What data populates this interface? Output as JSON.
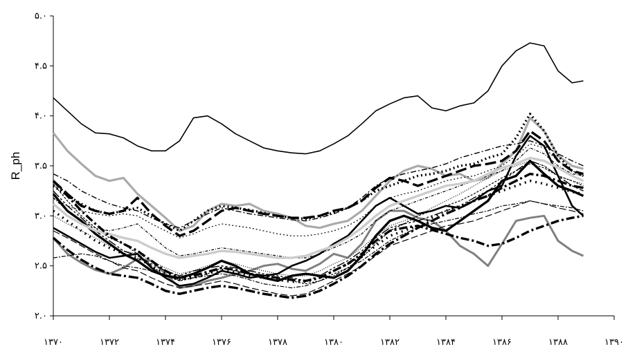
{
  "chart_data": {
    "type": "line",
    "ylabel": "R_ph",
    "xlabel": "",
    "xlim": [
      1370,
      1390
    ],
    "ylim": [
      2.0,
      5.0
    ],
    "x_ticks": [
      1370,
      1372,
      1374,
      1376,
      1378,
      1380,
      1382,
      1384,
      1386,
      1388,
      1390
    ],
    "x_tick_labels": [
      "۱۳۷۰",
      "۱۳۷۲",
      "۱۳۷۴",
      "۱۳۷۶",
      "۱۳۷۸",
      "۱۳۸۰",
      "۱۳۸۲",
      "۱۳۸۴",
      "۱۳۸۶",
      "۱۳۸۸",
      "۱۳۹۰"
    ],
    "y_ticks": [
      2.0,
      2.5,
      3.0,
      3.5,
      4.0,
      4.5,
      5.0
    ],
    "y_tick_labels": [
      "۲.۰",
      "۲.۵",
      "۳.۰",
      "۳.۵",
      "۴.۰",
      "۴.۵",
      "۵.۰"
    ],
    "grid": false,
    "legend": "none",
    "x": [
      1370,
      1370.5,
      1371,
      1371.5,
      1372,
      1372.5,
      1373,
      1373.5,
      1374,
      1374.5,
      1375,
      1375.5,
      1376,
      1376.5,
      1377,
      1377.5,
      1378,
      1378.5,
      1379,
      1379.5,
      1380,
      1380.5,
      1381,
      1381.5,
      1382,
      1382.5,
      1383,
      1383.5,
      1384,
      1384.5,
      1385,
      1385.5,
      1386,
      1386.5,
      1387,
      1387.5,
      1388,
      1388.5,
      1388.9
    ],
    "series": [
      {
        "values": [
          4.18,
          4.05,
          3.92,
          3.83,
          3.82,
          3.78,
          3.7,
          3.65,
          3.65,
          3.75,
          3.98,
          4.0,
          3.92,
          3.82,
          3.75,
          3.68,
          3.65,
          3.63,
          3.62,
          3.65,
          3.72,
          3.8,
          3.92,
          4.05,
          4.12,
          4.18,
          4.2,
          4.08,
          4.05,
          4.1,
          4.13,
          4.25,
          4.5,
          4.65,
          4.73,
          4.7,
          4.45,
          4.33,
          4.35
        ],
        "color": "#000000",
        "width": 1.6,
        "dash": ""
      },
      {
        "values": [
          3.83,
          3.65,
          3.52,
          3.4,
          3.35,
          3.38,
          3.22,
          3.1,
          2.98,
          2.85,
          2.9,
          3.05,
          3.12,
          3.1,
          3.12,
          3.05,
          3.02,
          2.98,
          2.9,
          2.88,
          2.92,
          2.95,
          3.05,
          3.2,
          3.35,
          3.45,
          3.5,
          3.47,
          3.4,
          3.42,
          3.35,
          3.38,
          3.52,
          3.65,
          3.98,
          3.85,
          3.6,
          3.5,
          3.47
        ],
        "color": "#aaaaaa",
        "width": 3.2,
        "dash": ""
      },
      {
        "values": [
          2.78,
          2.62,
          2.53,
          2.46,
          2.42,
          2.48,
          2.57,
          2.55,
          2.42,
          2.28,
          2.3,
          2.35,
          2.38,
          2.42,
          2.45,
          2.5,
          2.52,
          2.47,
          2.45,
          2.52,
          2.62,
          2.58,
          2.72,
          2.95,
          3.05,
          3.05,
          2.98,
          2.95,
          2.85,
          2.7,
          2.62,
          2.5,
          2.72,
          2.95,
          2.98,
          3.0,
          2.75,
          2.65,
          2.6
        ],
        "color": "#808080",
        "width": 3.0,
        "dash": ""
      },
      {
        "values": [
          2.88,
          2.8,
          2.72,
          2.64,
          2.58,
          2.6,
          2.62,
          2.48,
          2.38,
          2.3,
          2.32,
          2.38,
          2.45,
          2.42,
          2.38,
          2.4,
          2.42,
          2.5,
          2.55,
          2.62,
          2.72,
          2.8,
          2.95,
          3.1,
          3.18,
          3.1,
          3.02,
          3.05,
          3.1,
          3.08,
          3.15,
          3.25,
          3.3,
          3.6,
          3.8,
          3.7,
          3.4,
          3.1,
          3.0
        ],
        "color": "#000000",
        "width": 2.6,
        "dash": ""
      },
      {
        "values": [
          3.35,
          3.22,
          3.1,
          3.05,
          3.02,
          3.05,
          3.18,
          3.02,
          2.9,
          2.8,
          2.85,
          2.95,
          3.05,
          3.08,
          3.05,
          3.02,
          3.0,
          2.98,
          2.98,
          3.0,
          3.05,
          3.08,
          3.15,
          3.28,
          3.38,
          3.35,
          3.3,
          3.35,
          3.4,
          3.45,
          3.5,
          3.52,
          3.55,
          3.65,
          3.85,
          3.75,
          3.55,
          3.45,
          3.42
        ],
        "color": "#000000",
        "width": 3.4,
        "dash": "16,6"
      },
      {
        "values": [
          3.18,
          3.1,
          3.05,
          3.02,
          3.0,
          3.02,
          3.0,
          2.92,
          2.85,
          2.78,
          2.82,
          2.88,
          2.92,
          2.9,
          2.88,
          2.85,
          2.82,
          2.8,
          2.8,
          2.82,
          2.85,
          2.9,
          2.98,
          3.1,
          3.18,
          3.22,
          3.25,
          3.3,
          3.35,
          3.38,
          3.4,
          3.45,
          3.5,
          3.6,
          3.72,
          3.68,
          3.55,
          3.45,
          3.4
        ],
        "color": "#000000",
        "width": 1.2,
        "dash": "2,3"
      },
      {
        "values": [
          3.42,
          3.35,
          3.25,
          3.18,
          3.12,
          3.08,
          3.05,
          2.98,
          2.92,
          2.88,
          2.95,
          3.02,
          3.08,
          3.05,
          3.02,
          3.0,
          2.98,
          2.96,
          2.95,
          2.98,
          3.02,
          3.08,
          3.18,
          3.3,
          3.38,
          3.42,
          3.45,
          3.48,
          3.52,
          3.58,
          3.62,
          3.66,
          3.7,
          3.72,
          3.75,
          3.7,
          3.62,
          3.55,
          3.5
        ],
        "color": "#000000",
        "width": 1.4,
        "dash": "8,3,2,3"
      },
      {
        "values": [
          3.3,
          3.2,
          3.12,
          3.05,
          3.02,
          3.05,
          3.08,
          3.0,
          2.92,
          2.85,
          2.95,
          3.05,
          3.1,
          3.08,
          3.06,
          3.03,
          3.0,
          2.98,
          2.97,
          3.0,
          3.03,
          3.08,
          3.15,
          3.25,
          3.3,
          3.35,
          3.4,
          3.42,
          3.45,
          3.5,
          3.52,
          3.58,
          3.62,
          3.78,
          4.02,
          3.85,
          3.6,
          3.45,
          3.4
        ],
        "color": "#000000",
        "width": 3.4,
        "dash": "2,4"
      },
      {
        "values": [
          3.25,
          3.1,
          2.98,
          2.85,
          2.75,
          2.65,
          2.6,
          2.52,
          2.45,
          2.4,
          2.45,
          2.48,
          2.5,
          2.48,
          2.45,
          2.42,
          2.4,
          2.38,
          2.35,
          2.4,
          2.48,
          2.55,
          2.65,
          2.78,
          2.88,
          2.92,
          2.95,
          3.0,
          3.05,
          3.1,
          3.18,
          3.25,
          3.35,
          3.45,
          3.55,
          3.5,
          3.4,
          3.3,
          3.25
        ],
        "color": "#000000",
        "width": 1.4,
        "dash": "12,3,3,3,3,3"
      },
      {
        "values": [
          2.78,
          2.66,
          2.56,
          2.48,
          2.42,
          2.4,
          2.38,
          2.32,
          2.25,
          2.22,
          2.25,
          2.28,
          2.3,
          2.28,
          2.25,
          2.22,
          2.2,
          2.18,
          2.2,
          2.25,
          2.32,
          2.4,
          2.5,
          2.62,
          2.72,
          2.8,
          2.88,
          2.95,
          3.02,
          3.08,
          3.15,
          3.2,
          3.28,
          3.35,
          3.42,
          3.4,
          3.35,
          3.3,
          3.28
        ],
        "color": "#000000",
        "width": 3.4,
        "dash": "14,4,3,4"
      },
      {
        "values": [
          3.0,
          2.92,
          2.85,
          2.78,
          2.7,
          2.65,
          2.62,
          2.55,
          2.48,
          2.42,
          2.45,
          2.5,
          2.55,
          2.52,
          2.48,
          2.45,
          2.42,
          2.4,
          2.4,
          2.45,
          2.52,
          2.58,
          2.68,
          2.8,
          2.9,
          2.95,
          3.0,
          3.08,
          3.15,
          3.22,
          3.3,
          3.38,
          3.45,
          3.5,
          3.55,
          3.5,
          3.4,
          3.35,
          3.32
        ],
        "color": "#000000",
        "width": 1.2,
        "dash": "1,2"
      },
      {
        "values": [
          3.22,
          3.05,
          2.95,
          2.82,
          2.72,
          2.62,
          2.55,
          2.45,
          2.4,
          2.38,
          2.42,
          2.48,
          2.55,
          2.5,
          2.42,
          2.38,
          2.35,
          2.4,
          2.42,
          2.4,
          2.38,
          2.45,
          2.6,
          2.8,
          2.95,
          3.0,
          2.95,
          2.88,
          2.85,
          2.95,
          3.05,
          3.15,
          3.35,
          3.4,
          3.55,
          3.42,
          3.3,
          3.25,
          3.2
        ],
        "color": "#000000",
        "width": 3.4,
        "dash": ""
      },
      {
        "values": [
          3.32,
          3.15,
          3.0,
          2.88,
          2.78,
          2.72,
          2.62,
          2.5,
          2.4,
          2.35,
          2.38,
          2.42,
          2.48,
          2.45,
          2.42,
          2.4,
          2.38,
          2.35,
          2.32,
          2.35,
          2.42,
          2.48,
          2.58,
          2.72,
          2.85,
          2.92,
          3.0,
          3.05,
          3.1,
          3.15,
          3.22,
          3.3,
          3.38,
          3.45,
          3.52,
          3.48,
          3.4,
          3.35,
          3.3
        ],
        "color": "#000000",
        "width": 1.2,
        "dash": "3,2"
      },
      {
        "values": [
          3.18,
          3.05,
          2.95,
          2.88,
          2.85,
          2.88,
          2.92,
          2.8,
          2.68,
          2.6,
          2.62,
          2.65,
          2.68,
          2.66,
          2.64,
          2.62,
          2.6,
          2.58,
          2.58,
          2.62,
          2.68,
          2.74,
          2.82,
          2.95,
          3.05,
          3.1,
          3.15,
          3.2,
          3.25,
          3.3,
          3.35,
          3.4,
          3.45,
          3.55,
          3.68,
          3.62,
          3.5,
          3.42,
          3.4
        ],
        "color": "#000000",
        "width": 1.2,
        "dash": "4,2,1,2"
      },
      {
        "values": [
          3.12,
          3.0,
          2.92,
          2.85,
          2.82,
          2.78,
          2.75,
          2.68,
          2.62,
          2.58,
          2.6,
          2.62,
          2.65,
          2.64,
          2.62,
          2.6,
          2.58,
          2.58,
          2.6,
          2.65,
          2.7,
          2.78,
          2.88,
          3.0,
          3.1,
          3.15,
          3.2,
          3.25,
          3.3,
          3.32,
          3.35,
          3.42,
          3.48,
          3.52,
          3.58,
          3.55,
          3.48,
          3.4,
          3.35
        ],
        "color": "#cccccc",
        "width": 3.4,
        "dash": ""
      },
      {
        "values": [
          3.05,
          2.95,
          2.85,
          2.75,
          2.68,
          2.62,
          2.58,
          2.5,
          2.42,
          2.36,
          2.38,
          2.42,
          2.46,
          2.44,
          2.4,
          2.38,
          2.36,
          2.34,
          2.34,
          2.38,
          2.45,
          2.52,
          2.6,
          2.7,
          2.8,
          2.85,
          2.9,
          2.98,
          3.05,
          3.1,
          3.15,
          3.2,
          3.25,
          3.3,
          3.35,
          3.32,
          3.28,
          3.24,
          3.22
        ],
        "color": "#000000",
        "width": 3.4,
        "dash": "2,6"
      },
      {
        "values": [
          2.85,
          2.78,
          2.7,
          2.62,
          2.55,
          2.48,
          2.45,
          2.38,
          2.32,
          2.28,
          2.3,
          2.32,
          2.35,
          2.32,
          2.28,
          2.25,
          2.22,
          2.2,
          2.22,
          2.28,
          2.35,
          2.42,
          2.5,
          2.6,
          2.7,
          2.75,
          2.8,
          2.85,
          2.9,
          2.92,
          2.95,
          3.0,
          3.05,
          3.1,
          3.15,
          3.12,
          3.08,
          3.05,
          3.02
        ],
        "color": "#000000",
        "width": 1.2,
        "dash": "10,4"
      },
      {
        "values": [
          2.58,
          2.6,
          2.62,
          2.6,
          2.55,
          2.5,
          2.48,
          2.45,
          2.4,
          2.36,
          2.38,
          2.4,
          2.42,
          2.4,
          2.36,
          2.32,
          2.3,
          2.28,
          2.3,
          2.35,
          2.4,
          2.48,
          2.55,
          2.65,
          2.75,
          2.82,
          2.88,
          2.92,
          2.95,
          2.98,
          3.02,
          3.05,
          3.1,
          3.12,
          3.15,
          3.12,
          3.1,
          3.08,
          3.05
        ],
        "color": "#000000",
        "width": 1.2,
        "dash": "6,2,2,2"
      },
      {
        "values": [
          3.35,
          3.2,
          3.05,
          2.92,
          2.8,
          2.72,
          2.65,
          2.55,
          2.45,
          2.38,
          2.4,
          2.44,
          2.48,
          2.46,
          2.42,
          2.4,
          2.38,
          2.36,
          2.35,
          2.38,
          2.45,
          2.52,
          2.62,
          2.75,
          2.85,
          2.88,
          2.9,
          2.86,
          2.82,
          2.78,
          2.75,
          2.7,
          2.72,
          2.78,
          2.85,
          2.9,
          2.95,
          2.98,
          3.0
        ],
        "color": "#000000",
        "width": 3.4,
        "dash": "12,4,3,4"
      }
    ]
  }
}
